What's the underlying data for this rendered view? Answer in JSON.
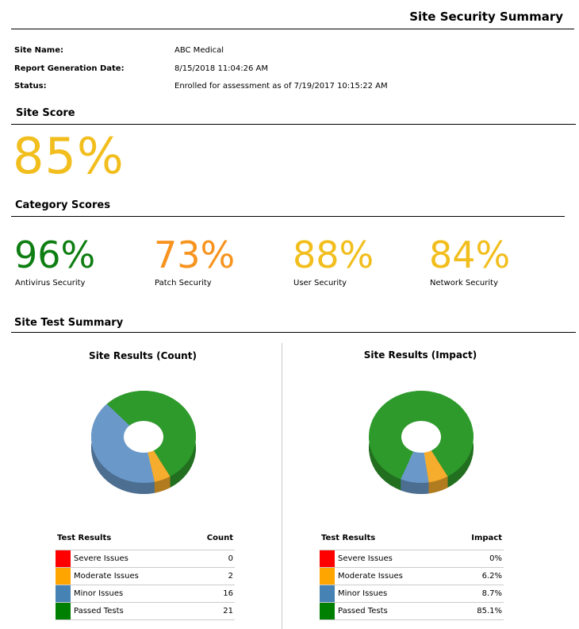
{
  "header": {
    "title": "Site Security Summary"
  },
  "info": {
    "site_name_label": "Site Name:",
    "site_name": "ABC Medical",
    "report_date_label": "Report Generation Date:",
    "report_date": "8/15/2018 11:04:26 AM",
    "status_label": "Status:",
    "status": "Enrolled for assessment as of 7/19/2017 10:15:22 AM"
  },
  "site_score": {
    "heading": "Site Score",
    "value": "85%",
    "color": "#F2BE1D"
  },
  "category_scores": {
    "heading": "Category Scores",
    "items": [
      {
        "score": "96%",
        "label": "Antivirus Security",
        "color": "#0E7E12"
      },
      {
        "score": "73%",
        "label": "Patch Security",
        "color": "#F7931E"
      },
      {
        "score": "88%",
        "label": "User Security",
        "color": "#F2BE1D"
      },
      {
        "score": "84%",
        "label": "Network Security",
        "color": "#F2BE1D"
      }
    ]
  },
  "test_summary": {
    "heading": "Site Test Summary",
    "count": {
      "title": "Site Results (Count)",
      "col_label": "Test Results",
      "col_value": "Count",
      "rows": [
        {
          "label": "Severe Issues",
          "value": "0"
        },
        {
          "label": "Moderate Issues",
          "value": "2"
        },
        {
          "label": "Minor Issues",
          "value": "16"
        },
        {
          "label": "Passed Tests",
          "value": "21"
        }
      ]
    },
    "impact": {
      "title": "Site Results (Impact)",
      "col_label": "Test Results",
      "col_value": "Impact",
      "rows": [
        {
          "label": "Severe Issues",
          "value": "0%"
        },
        {
          "label": "Moderate Issues",
          "value": "6.2%"
        },
        {
          "label": "Minor Issues",
          "value": "8.7%"
        },
        {
          "label": "Passed Tests",
          "value": "85.1%"
        }
      ]
    }
  },
  "colors": {
    "severe": "#FF0000",
    "moderate": "#FFA500",
    "minor": "#4682B4",
    "passed": "#008000",
    "donut_passed": "#2E9A2B",
    "donut_minor": "#6A99C9",
    "donut_moderate": "#F6AC2C"
  },
  "chart_data": [
    {
      "type": "pie",
      "title": "Site Results (Count)",
      "categories": [
        "Severe Issues",
        "Moderate Issues",
        "Minor Issues",
        "Passed Tests"
      ],
      "values": [
        0,
        2,
        16,
        21
      ]
    },
    {
      "type": "pie",
      "title": "Site Results (Impact)",
      "categories": [
        "Severe Issues",
        "Moderate Issues",
        "Minor Issues",
        "Passed Tests"
      ],
      "values": [
        0,
        6.2,
        8.7,
        85.1
      ]
    }
  ]
}
